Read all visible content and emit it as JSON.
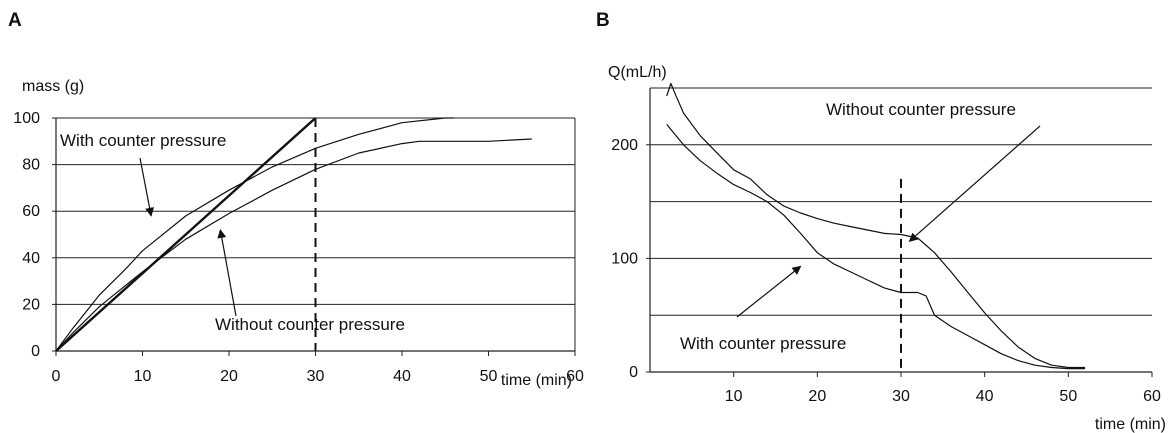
{
  "chart_data": [
    {
      "panel": "A",
      "type": "line",
      "ylabel": "mass (g)",
      "xlabel": "time (min)",
      "xlim": [
        0,
        60
      ],
      "ylim": [
        0,
        100
      ],
      "xticks": [
        0,
        10,
        20,
        30,
        40,
        50,
        60
      ],
      "yticks": [
        0,
        20,
        40,
        60,
        80,
        100
      ],
      "grid": "horizontal",
      "series": [
        {
          "x": [
            0,
            2,
            5,
            8,
            10,
            15,
            20,
            25,
            30,
            35,
            40,
            45,
            46
          ],
          "y": [
            0,
            10,
            24,
            35,
            43,
            58,
            69,
            79,
            87,
            93,
            98,
            100,
            100
          ]
        },
        {
          "x": [
            0,
            2,
            5,
            10,
            15,
            20,
            25,
            30,
            35,
            40,
            42,
            45,
            50,
            55
          ],
          "y": [
            0,
            8,
            19,
            34,
            48,
            59,
            69,
            78,
            85,
            89,
            90,
            90,
            90,
            91
          ]
        },
        {
          "x": [
            0,
            30
          ],
          "y": [
            0,
            100
          ],
          "bold": true
        }
      ],
      "vline": {
        "x": 30,
        "style": "dashed"
      },
      "annotations": [
        {
          "text": "With counter pressure",
          "arrow_to": [
            11,
            58
          ]
        },
        {
          "text": "Without counter pressure",
          "arrow_to": [
            19,
            52
          ]
        }
      ]
    },
    {
      "panel": "B",
      "type": "line",
      "ylabel": "Q(mL/h)",
      "xlabel": "time (min)",
      "xlim": [
        0,
        60
      ],
      "ylim": [
        0,
        250
      ],
      "xticks": [
        10,
        20,
        30,
        40,
        50,
        60
      ],
      "yticks": [
        0,
        100,
        200
      ],
      "grid_lines": [
        50,
        100,
        150,
        200,
        250
      ],
      "grid": "horizontal",
      "series": [
        {
          "x": [
            2,
            2.5,
            3,
            4,
            6,
            8,
            10,
            12,
            14,
            16,
            18,
            20,
            22,
            24,
            26,
            28,
            30,
            32,
            34,
            36,
            38,
            40,
            42,
            44,
            46,
            48,
            50,
            52
          ],
          "y": [
            243,
            254,
            245,
            228,
            208,
            193,
            178,
            170,
            156,
            146,
            140,
            135,
            131,
            128,
            125,
            122,
            121,
            118,
            105,
            88,
            70,
            52,
            36,
            22,
            12,
            6,
            4,
            4
          ]
        },
        {
          "x": [
            2,
            4,
            6,
            8,
            10,
            12,
            14,
            16,
            18,
            20,
            22,
            24,
            26,
            28,
            30,
            32,
            33,
            34,
            36,
            38,
            40,
            42,
            44,
            46,
            48,
            50,
            52
          ],
          "y": [
            218,
            200,
            186,
            175,
            165,
            158,
            150,
            138,
            122,
            105,
            95,
            88,
            81,
            74,
            70,
            70,
            67,
            50,
            40,
            32,
            24,
            16,
            10,
            6,
            4,
            3,
            3
          ]
        }
      ],
      "vline": {
        "x": 30,
        "style": "dashed"
      },
      "annotations": [
        {
          "text": "Without counter pressure",
          "arrow_to": [
            31,
            115
          ]
        },
        {
          "text": "With counter pressure",
          "arrow_to": [
            18,
            93
          ]
        }
      ]
    }
  ]
}
